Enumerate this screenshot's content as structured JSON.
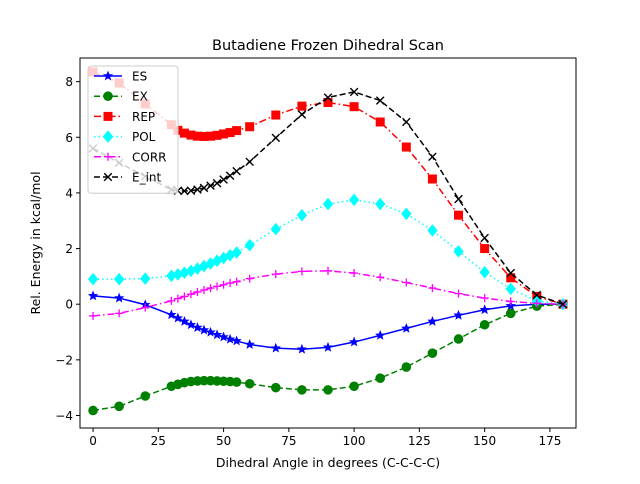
{
  "chart_data": {
    "type": "line",
    "title": "Butadiene Frozen Dihedral Scan",
    "xlabel": "Dihedral Angle in degrees (C-C-C-C)",
    "ylabel": "Rel. Energy in kcal/mol",
    "xlim": [
      -5,
      185
    ],
    "ylim": [
      -4.45,
      8.85
    ],
    "xticks": [
      0,
      25,
      50,
      75,
      100,
      125,
      150,
      175
    ],
    "yticks": [
      -4,
      -2,
      0,
      2,
      4,
      6,
      8
    ],
    "grid": false,
    "legend_position": "upper-left",
    "x": [
      0,
      10,
      20,
      30,
      32.5,
      35,
      37.5,
      40,
      42.5,
      45,
      47.5,
      50,
      52.5,
      55,
      60,
      70,
      80,
      90,
      100,
      110,
      120,
      130,
      140,
      150,
      160,
      170,
      180
    ],
    "series": [
      {
        "name": "ES",
        "color": "#0000ff",
        "linestyle": "solid",
        "marker": "star",
        "values": [
          0.3,
          0.22,
          -0.02,
          -0.38,
          -0.5,
          -0.62,
          -0.74,
          -0.84,
          -0.93,
          -1.01,
          -1.1,
          -1.18,
          -1.26,
          -1.32,
          -1.45,
          -1.58,
          -1.62,
          -1.55,
          -1.36,
          -1.12,
          -0.87,
          -0.62,
          -0.4,
          -0.2,
          -0.06,
          0.0,
          0.0
        ]
      },
      {
        "name": "EX",
        "color": "#008000",
        "linestyle": "dashed",
        "marker": "circle",
        "values": [
          -3.82,
          -3.67,
          -3.3,
          -2.95,
          -2.88,
          -2.82,
          -2.78,
          -2.76,
          -2.75,
          -2.75,
          -2.76,
          -2.77,
          -2.78,
          -2.8,
          -2.86,
          -3.0,
          -3.08,
          -3.08,
          -2.95,
          -2.66,
          -2.26,
          -1.76,
          -1.25,
          -0.74,
          -0.33,
          -0.07,
          0.0
        ]
      },
      {
        "name": "REP",
        "color": "#ff0000",
        "linestyle": "dashdot",
        "marker": "square",
        "values": [
          8.35,
          7.95,
          7.2,
          6.45,
          6.25,
          6.15,
          6.08,
          6.04,
          6.03,
          6.04,
          6.07,
          6.12,
          6.17,
          6.24,
          6.38,
          6.8,
          7.12,
          7.25,
          7.1,
          6.55,
          5.65,
          4.5,
          3.2,
          2.0,
          0.95,
          0.28,
          0.0
        ]
      },
      {
        "name": "POL",
        "color": "#00ffff",
        "linestyle": "dotted",
        "marker": "diamond",
        "values": [
          0.9,
          0.9,
          0.92,
          1.02,
          1.07,
          1.13,
          1.2,
          1.28,
          1.37,
          1.46,
          1.56,
          1.66,
          1.76,
          1.86,
          2.12,
          2.7,
          3.2,
          3.6,
          3.75,
          3.6,
          3.25,
          2.65,
          1.9,
          1.15,
          0.55,
          0.12,
          0.0
        ]
      },
      {
        "name": "CORR",
        "color": "#ff00ff",
        "linestyle": "dashdot",
        "marker": "plus",
        "values": [
          -0.42,
          -0.33,
          -0.12,
          0.12,
          0.2,
          0.28,
          0.36,
          0.44,
          0.51,
          0.58,
          0.64,
          0.7,
          0.76,
          0.81,
          0.92,
          1.08,
          1.18,
          1.2,
          1.12,
          0.97,
          0.78,
          0.58,
          0.38,
          0.22,
          0.1,
          0.03,
          0.0
        ]
      },
      {
        "name": "E_int",
        "color": "#000000",
        "linestyle": "dashed",
        "marker": "x",
        "values": [
          5.6,
          5.08,
          4.6,
          4.12,
          4.08,
          4.07,
          4.08,
          4.12,
          4.18,
          4.26,
          4.35,
          4.48,
          4.62,
          4.78,
          5.12,
          5.98,
          6.82,
          7.43,
          7.63,
          7.32,
          6.55,
          5.3,
          3.78,
          2.38,
          1.12,
          0.33,
          0.0
        ]
      }
    ]
  }
}
